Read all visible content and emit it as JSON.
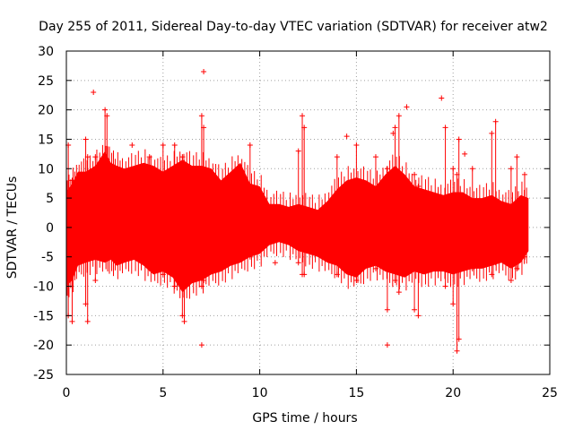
{
  "chart_data": {
    "type": "scatter",
    "title": "Day 255 of 2011, Sidereal Day-to-day VTEC variation (SDTVAR) for receiver atw2",
    "xlabel": "GPS time / hours",
    "ylabel": "SDTVAR / TECUs",
    "xlim": [
      0,
      25
    ],
    "ylim": [
      -25,
      30
    ],
    "xticks": [
      0,
      5,
      10,
      15,
      20,
      25
    ],
    "yticks": [
      -25,
      -20,
      -15,
      -10,
      -5,
      0,
      5,
      10,
      15,
      20,
      25,
      30
    ],
    "xtick_labels": [
      "0",
      "5",
      "10",
      "15",
      "20",
      "25"
    ],
    "ytick_labels": [
      "-25",
      "-20",
      "-15",
      "-10",
      "-5",
      "0",
      "5",
      "10",
      "15",
      "20",
      "25",
      "30"
    ],
    "grid": true,
    "marker": "+",
    "color": "#ff0000",
    "envelope": {
      "x": [
        0.0,
        0.3,
        0.6,
        1.0,
        1.5,
        2.0,
        2.3,
        2.6,
        3.0,
        3.5,
        4.0,
        4.5,
        5.0,
        5.5,
        6.0,
        6.5,
        7.0,
        7.5,
        8.0,
        8.5,
        9.0,
        9.5,
        10.0,
        10.5,
        11.0,
        11.5,
        12.0,
        12.5,
        13.0,
        13.5,
        14.0,
        14.5,
        15.0,
        15.5,
        16.0,
        16.5,
        17.0,
        17.5,
        18.0,
        18.5,
        19.0,
        19.5,
        20.0,
        20.5,
        21.0,
        21.5,
        22.0,
        22.5,
        23.0,
        23.5,
        23.9
      ],
      "upper": [
        6.0,
        7.5,
        9.5,
        9.5,
        10.5,
        13.0,
        11.0,
        10.5,
        10.0,
        10.5,
        11.0,
        10.5,
        9.5,
        10.5,
        11.5,
        10.5,
        10.5,
        10.0,
        8.0,
        9.5,
        11.0,
        7.5,
        7.0,
        4.0,
        4.0,
        3.5,
        4.0,
        3.5,
        3.0,
        4.5,
        6.5,
        8.0,
        8.5,
        8.0,
        7.0,
        9.0,
        10.5,
        9.0,
        7.0,
        6.5,
        6.0,
        5.5,
        6.0,
        6.0,
        5.0,
        5.0,
        5.5,
        4.5,
        4.0,
        5.5,
        5.0
      ],
      "lower": [
        -10.0,
        -9.0,
        -6.5,
        -6.0,
        -5.5,
        -6.0,
        -5.5,
        -6.5,
        -6.0,
        -5.5,
        -6.5,
        -8.0,
        -7.5,
        -8.5,
        -11.0,
        -9.5,
        -9.0,
        -8.0,
        -7.5,
        -6.5,
        -6.0,
        -5.0,
        -4.5,
        -3.0,
        -2.5,
        -3.0,
        -4.0,
        -4.5,
        -5.0,
        -6.0,
        -6.5,
        -8.0,
        -8.5,
        -7.0,
        -6.5,
        -7.5,
        -8.0,
        -8.5,
        -7.5,
        -8.0,
        -7.5,
        -7.5,
        -8.0,
        -7.5,
        -7.0,
        -7.0,
        -6.5,
        -6.0,
        -7.0,
        -6.0,
        -4.0
      ]
    },
    "spikes": [
      {
        "x": 0.1,
        "ymin": -15.0,
        "ymax": 14.0
      },
      {
        "x": 0.3,
        "ymin": -16.0,
        "ymax": 8.0
      },
      {
        "x": 1.0,
        "ymin": -13.0,
        "ymax": 15.0
      },
      {
        "x": 1.1,
        "ymin": -16.0,
        "ymax": 12.0
      },
      {
        "x": 1.5,
        "ymin": -9.0,
        "ymax": 12.0
      },
      {
        "x": 2.0,
        "ymin": -5.0,
        "ymax": 20.0
      },
      {
        "x": 2.1,
        "ymin": -5.0,
        "ymax": 19.0
      },
      {
        "x": 4.3,
        "ymin": -7.0,
        "ymax": 12.0
      },
      {
        "x": 5.0,
        "ymin": -8.0,
        "ymax": 14.0
      },
      {
        "x": 5.6,
        "ymin": -10.0,
        "ymax": 14.0
      },
      {
        "x": 6.0,
        "ymin": -15.0,
        "ymax": 12.0
      },
      {
        "x": 6.1,
        "ymin": -16.0,
        "ymax": 11.0
      },
      {
        "x": 7.0,
        "ymin": -10.0,
        "ymax": 19.0
      },
      {
        "x": 7.1,
        "ymin": -9.0,
        "ymax": 17.0
      },
      {
        "x": 9.5,
        "ymin": -5.0,
        "ymax": 14.0
      },
      {
        "x": 12.0,
        "ymin": -6.0,
        "ymax": 13.0
      },
      {
        "x": 12.2,
        "ymin": -8.0,
        "ymax": 19.0
      },
      {
        "x": 12.3,
        "ymin": -8.0,
        "ymax": 17.0
      },
      {
        "x": 14.0,
        "ymin": -8.0,
        "ymax": 12.0
      },
      {
        "x": 15.0,
        "ymin": -9.0,
        "ymax": 14.0
      },
      {
        "x": 16.0,
        "ymin": -7.0,
        "ymax": 12.0
      },
      {
        "x": 16.6,
        "ymin": -14.0,
        "ymax": 10.0
      },
      {
        "x": 17.0,
        "ymin": -9.0,
        "ymax": 17.0
      },
      {
        "x": 17.2,
        "ymin": -11.0,
        "ymax": 19.0
      },
      {
        "x": 18.0,
        "ymin": -14.0,
        "ymax": 9.0
      },
      {
        "x": 18.2,
        "ymin": -15.0,
        "ymax": 7.0
      },
      {
        "x": 19.6,
        "ymin": -10.0,
        "ymax": 17.0
      },
      {
        "x": 20.0,
        "ymin": -13.0,
        "ymax": 10.0
      },
      {
        "x": 20.2,
        "ymin": -21.0,
        "ymax": 9.0
      },
      {
        "x": 20.3,
        "ymin": -19.0,
        "ymax": 15.0
      },
      {
        "x": 21.0,
        "ymin": -7.0,
        "ymax": 10.0
      },
      {
        "x": 22.0,
        "ymin": -8.0,
        "ymax": 16.0
      },
      {
        "x": 22.2,
        "ymin": -6.0,
        "ymax": 18.0
      },
      {
        "x": 23.0,
        "ymin": -9.0,
        "ymax": 10.0
      },
      {
        "x": 23.3,
        "ymin": -7.0,
        "ymax": 12.0
      },
      {
        "x": 23.7,
        "ymin": -5.0,
        "ymax": 9.0
      }
    ],
    "outliers": [
      {
        "x": 1.4,
        "y": 23.0
      },
      {
        "x": 7.1,
        "y": 26.5
      },
      {
        "x": 7.0,
        "y": -20.0
      },
      {
        "x": 3.4,
        "y": 14.0
      },
      {
        "x": 10.8,
        "y": -6.0
      },
      {
        "x": 14.5,
        "y": 15.5
      },
      {
        "x": 17.6,
        "y": 20.5
      },
      {
        "x": 19.4,
        "y": 22.0
      },
      {
        "x": 16.6,
        "y": -20.0
      },
      {
        "x": 16.9,
        "y": 16.0
      },
      {
        "x": 20.6,
        "y": 12.5
      }
    ]
  }
}
